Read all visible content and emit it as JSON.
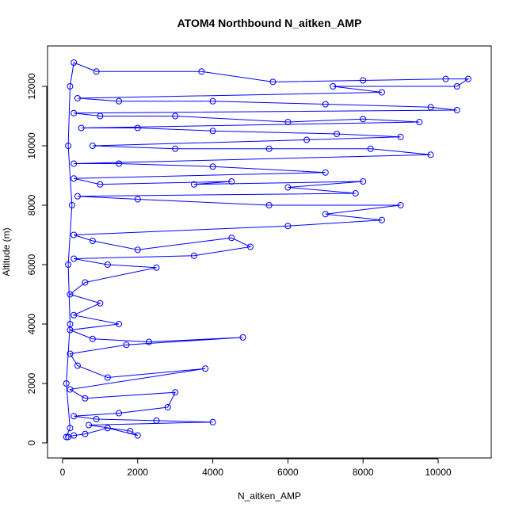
{
  "chart_data": {
    "type": "line",
    "title": "ATOM4 Northbound N_aitken_AMP",
    "xlabel": "N_aitken_AMP",
    "ylabel": "Altitude (m)",
    "color": "#0000ff",
    "markers": true,
    "xlim": [
      -400,
      11413
    ],
    "ylim": [
      -507,
      13360
    ],
    "xticks": [
      0,
      2000,
      4000,
      6000,
      8000,
      10000
    ],
    "yticks": [
      0,
      2000,
      4000,
      6000,
      8000,
      10000,
      12000
    ],
    "x": [
      150,
      300,
      600,
      1200,
      2000,
      1800,
      700,
      4000,
      2500,
      900,
      300,
      1500,
      2800,
      3000,
      600,
      200,
      3800,
      1200,
      400,
      200,
      1700,
      4800,
      2300,
      800,
      200,
      1500,
      300,
      1000,
      200,
      600,
      2500,
      1200,
      300,
      3500,
      5000,
      4500,
      2000,
      800,
      300,
      6000,
      8500,
      7000,
      9000,
      5500,
      2000,
      400,
      7800,
      6000,
      8000,
      3500,
      4500,
      1000,
      300,
      7000,
      4000,
      1500,
      300,
      9800,
      8200,
      5500,
      3000,
      800,
      6500,
      9000,
      7300,
      4000,
      2000,
      500,
      9500,
      8000,
      6000,
      3000,
      1000,
      300,
      10500,
      9800,
      7000,
      4000,
      1500,
      400,
      8500,
      7200,
      10500,
      10800,
      10200,
      8000,
      5600,
      3700,
      900,
      300,
      200,
      150,
      250,
      150,
      200,
      100,
      200,
      100
    ],
    "values": [
      200,
      250,
      300,
      500,
      250,
      400,
      600,
      700,
      750,
      800,
      900,
      1000,
      1200,
      1700,
      1500,
      1800,
      2500,
      2200,
      2600,
      3000,
      3300,
      3550,
      3400,
      3500,
      3800,
      4000,
      4300,
      4700,
      5000,
      5400,
      5900,
      6000,
      6200,
      6300,
      6600,
      6900,
      6500,
      6800,
      7000,
      7300,
      7500,
      7700,
      8000,
      8000,
      8200,
      8300,
      8400,
      8600,
      8800,
      8700,
      8800,
      8700,
      8900,
      9100,
      9300,
      9400,
      9400,
      9700,
      9900,
      9900,
      9900,
      10000,
      10200,
      10300,
      10400,
      10500,
      10600,
      10600,
      10800,
      10900,
      10800,
      11000,
      11000,
      11100,
      11200,
      11300,
      11400,
      11500,
      11500,
      11600,
      11800,
      12000,
      12000,
      12250,
      12250,
      12200,
      12150,
      12500,
      12500,
      12800,
      12000,
      10000,
      8000,
      6000,
      4000,
      2000,
      500,
      200
    ]
  }
}
